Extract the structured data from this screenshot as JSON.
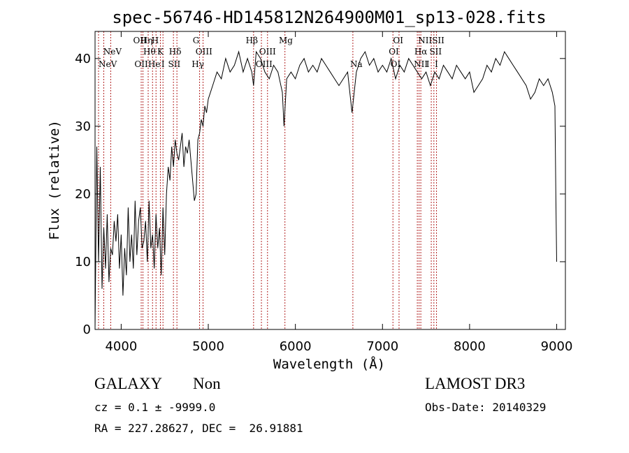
{
  "chart_data": {
    "type": "line",
    "title": "spec-56746-HD145812N264900M01_sp13-028.fits",
    "xlabel": "Wavelength (Å)",
    "ylabel": "Flux (relative)",
    "xlim": [
      3700,
      9100
    ],
    "ylim": [
      0,
      44
    ],
    "xticks": [
      4000,
      5000,
      6000,
      7000,
      8000,
      9000
    ],
    "yticks": [
      0,
      10,
      20,
      30,
      40
    ],
    "grid": false,
    "series": [
      {
        "color": "#000000",
        "x": [
          3700,
          3720,
          3740,
          3760,
          3780,
          3800,
          3820,
          3840,
          3860,
          3880,
          3900,
          3920,
          3940,
          3960,
          3980,
          4000,
          4020,
          4040,
          4060,
          4080,
          4100,
          4120,
          4140,
          4160,
          4180,
          4200,
          4220,
          4240,
          4260,
          4280,
          4300,
          4320,
          4340,
          4360,
          4380,
          4400,
          4420,
          4440,
          4460,
          4480,
          4500,
          4520,
          4540,
          4560,
          4580,
          4600,
          4620,
          4640,
          4660,
          4680,
          4700,
          4720,
          4740,
          4760,
          4780,
          4800,
          4820,
          4840,
          4860,
          4880,
          4900,
          4920,
          4940,
          4960,
          4980,
          5000,
          5050,
          5100,
          5150,
          5200,
          5250,
          5300,
          5350,
          5400,
          5450,
          5500,
          5520,
          5550,
          5600,
          5650,
          5700,
          5750,
          5800,
          5850,
          5870,
          5900,
          5950,
          6000,
          6050,
          6100,
          6150,
          6200,
          6250,
          6300,
          6350,
          6400,
          6450,
          6500,
          6550,
          6600,
          6650,
          6700,
          6750,
          6800,
          6850,
          6900,
          6950,
          7000,
          7050,
          7100,
          7150,
          7200,
          7250,
          7300,
          7350,
          7400,
          7450,
          7500,
          7550,
          7600,
          7650,
          7700,
          7750,
          7800,
          7850,
          7900,
          7950,
          8000,
          8050,
          8100,
          8150,
          8200,
          8250,
          8300,
          8350,
          8400,
          8450,
          8500,
          8550,
          8600,
          8650,
          8700,
          8750,
          8800,
          8850,
          8900,
          8950,
          8980,
          8990,
          9000
        ],
        "values": [
          0,
          27,
          10,
          24,
          6,
          15,
          9,
          17,
          7,
          12,
          11,
          16,
          13,
          17,
          9,
          14,
          5,
          12,
          8,
          18,
          10,
          14,
          9,
          19,
          11,
          16,
          18,
          12,
          13,
          16,
          10,
          19,
          12,
          14,
          9,
          17,
          12,
          15,
          8,
          18,
          11,
          20,
          24,
          22,
          27,
          24,
          28,
          26,
          25,
          27,
          29,
          24,
          27,
          26,
          28,
          25,
          22,
          19,
          20,
          28,
          29,
          31,
          30,
          33,
          32,
          34,
          36,
          38,
          37,
          40,
          38,
          39,
          41,
          38,
          40,
          38,
          36,
          41,
          40,
          38,
          37,
          39,
          38,
          35,
          30,
          37,
          38,
          37,
          39,
          40,
          38,
          39,
          38,
          40,
          39,
          38,
          37,
          36,
          37,
          38,
          32,
          38,
          40,
          41,
          39,
          40,
          38,
          39,
          38,
          40,
          37,
          39,
          38,
          40,
          39,
          38,
          37,
          38,
          36,
          38,
          37,
          39,
          38,
          37,
          39,
          38,
          37,
          38,
          35,
          36,
          37,
          39,
          38,
          40,
          39,
          41,
          40,
          39,
          38,
          37,
          36,
          34,
          35,
          37,
          36,
          37,
          35,
          33,
          20,
          10
        ]
      }
    ],
    "spectral_lines": [
      {
        "label": "NeV",
        "x": 3846,
        "row": 2
      },
      {
        "label": "NeV",
        "x": 3900,
        "row": 1
      },
      {
        "label": "OII",
        "x": 4215,
        "row": 0
      },
      {
        "label": "Hη",
        "x": 4290,
        "row": 0
      },
      {
        "label": "H",
        "x": 4390,
        "row": 0
      },
      {
        "label": "Hθ",
        "x": 4325,
        "row": 1
      },
      {
        "label": "K",
        "x": 4450,
        "row": 1
      },
      {
        "label": "OII",
        "x": 4230,
        "row": 2
      },
      {
        "label": "He",
        "x": 4380,
        "row": 2
      },
      {
        "label": "I",
        "x": 4480,
        "row": 2
      },
      {
        "label": "Hδ",
        "x": 4620,
        "row": 1
      },
      {
        "label": "SII",
        "x": 4610,
        "row": 2
      },
      {
        "label": "G",
        "x": 4860,
        "row": 0
      },
      {
        "label": "OIII",
        "x": 4950,
        "row": 1
      },
      {
        "label": "Hγ",
        "x": 4880,
        "row": 2
      },
      {
        "label": "Hβ",
        "x": 5500,
        "row": 0
      },
      {
        "label": "OIII",
        "x": 5680,
        "row": 1
      },
      {
        "label": "OIII",
        "x": 5640,
        "row": 2
      },
      {
        "label": "Mg",
        "x": 5890,
        "row": 0
      },
      {
        "label": "Na",
        "x": 6700,
        "row": 2
      },
      {
        "label": "OI",
        "x": 7180,
        "row": 0
      },
      {
        "label": "OI",
        "x": 7130,
        "row": 1
      },
      {
        "label": "OI",
        "x": 7150,
        "row": 2
      },
      {
        "label": "NIISII",
        "x": 7560,
        "row": 0
      },
      {
        "label": "Hα",
        "x": 7440,
        "row": 1
      },
      {
        "label": "SII",
        "x": 7610,
        "row": 1
      },
      {
        "label": "NII",
        "x": 7440,
        "row": 2
      },
      {
        "label": "I",
        "x": 7520,
        "row": 2
      },
      {
        "label": "I",
        "x": 7620,
        "row": 2
      }
    ],
    "marker_x": [
      3740,
      3800,
      3880,
      4230,
      4250,
      4310,
      4360,
      4400,
      4450,
      4480,
      4600,
      4640,
      4900,
      4940,
      5520,
      5610,
      5680,
      5880,
      6660,
      7120,
      7190,
      7400,
      7420,
      7440,
      7560,
      7590,
      7620
    ]
  },
  "info": {
    "classification": "GALAXY",
    "subclass": "Non",
    "survey": "LAMOST DR3",
    "cz": "cz = 0.1 ± -9999.0",
    "obs_date": "Obs-Date: 20140329",
    "coords": "RA = 227.28627, DEC =  26.91881"
  }
}
